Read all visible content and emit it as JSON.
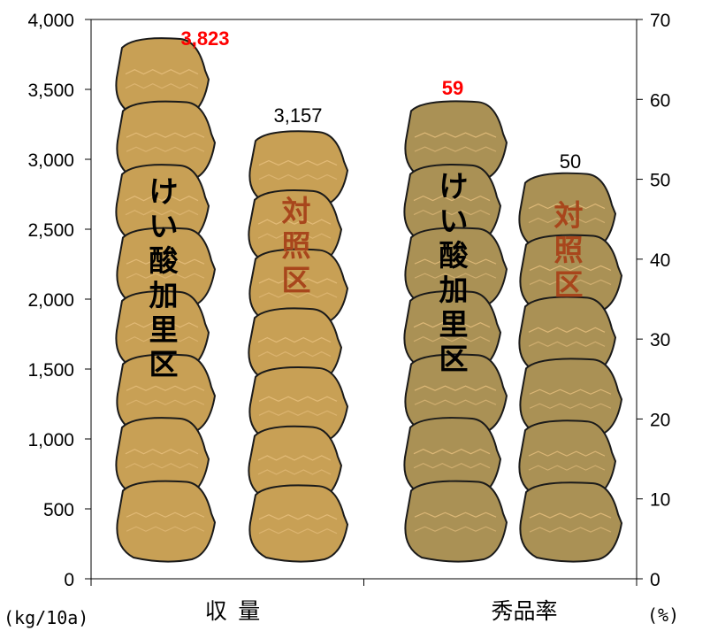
{
  "chart_data": {
    "type": "bar",
    "categories": [
      "収 量",
      "秀品率"
    ],
    "left_axis": {
      "unit": "(kg/10a)",
      "ylim": [
        0,
        4000
      ],
      "ticks": [
        "0",
        "500",
        "1,000",
        "1,500",
        "2,000",
        "2,500",
        "3,000",
        "3,500",
        "4,000"
      ]
    },
    "right_axis": {
      "unit": "(%)",
      "ylim": [
        0,
        70
      ],
      "ticks": [
        "0",
        "10",
        "20",
        "30",
        "40",
        "50",
        "60",
        "70"
      ]
    },
    "bars": [
      {
        "category": "収 量",
        "axis": "left",
        "label": "けい酸加里区",
        "value": 3823,
        "value_label": "3,823",
        "color": "#c8a055",
        "label_color": "#000000",
        "value_color": "#ff0000"
      },
      {
        "category": "収 量",
        "axis": "left",
        "label": "対照区",
        "value": 3157,
        "value_label": "3,157",
        "color": "#c8a055",
        "label_color": "#a8461c",
        "value_color": "#000000"
      },
      {
        "category": "秀品率",
        "axis": "right",
        "label": "けい酸加里区",
        "value": 59,
        "value_label": "59",
        "color": "#aa9155",
        "label_color": "#000000",
        "value_color": "#ff0000"
      },
      {
        "category": "秀品率",
        "axis": "right",
        "label": "対照区",
        "value": 50,
        "value_label": "50",
        "color": "#aa9155",
        "label_color": "#a8461c",
        "value_color": "#000000"
      }
    ],
    "grid": false
  }
}
